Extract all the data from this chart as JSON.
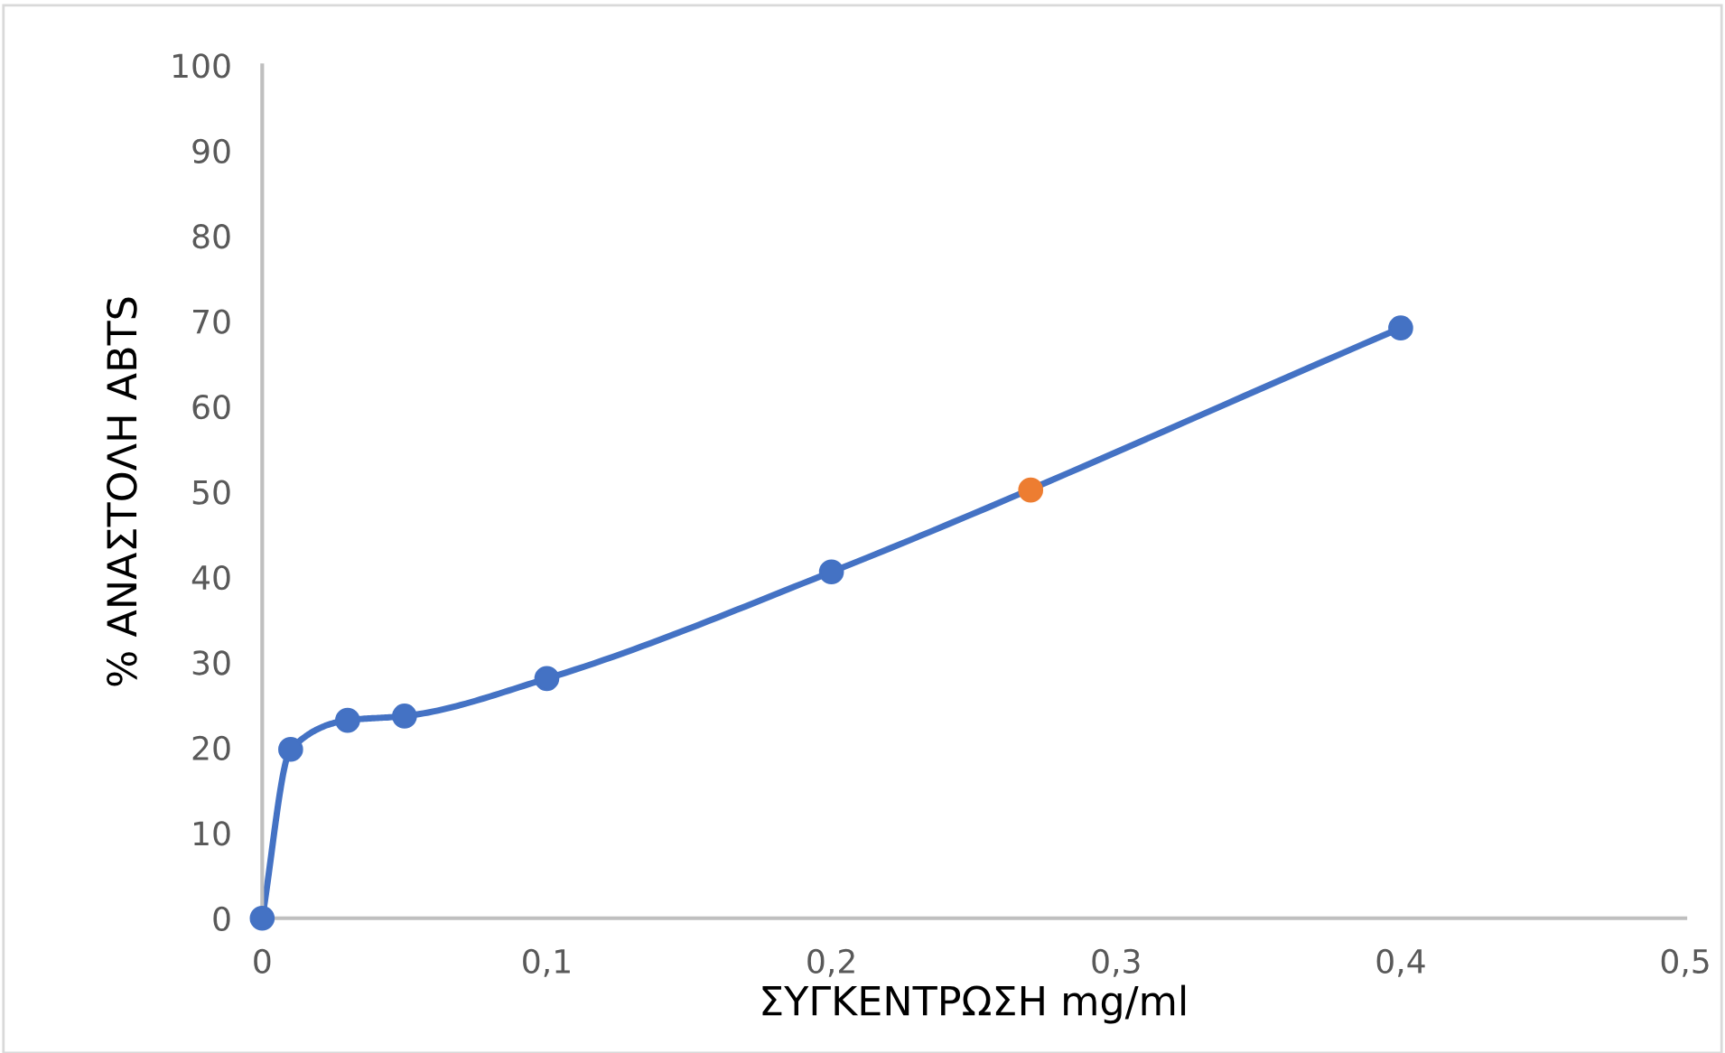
{
  "chart_data": {
    "type": "line",
    "xlabel": "ΣΥΓΚΕΝΤΡΩΣΗ mg/ml",
    "ylabel": "% ΑΝΑΣΤΟΛΗ ABTS",
    "series": [
      {
        "color": "#4472c4",
        "x": [
          0,
          0.01,
          0.03,
          0.05,
          0.1,
          0.2,
          0.4
        ],
        "values": [
          0,
          19.8,
          23.2,
          23.7,
          28.1,
          40.6,
          69.2
        ]
      },
      {
        "type": "scatter",
        "color": "#ed7d31",
        "x": [
          0.27
        ],
        "values": [
          50.2
        ]
      }
    ],
    "marker": "circle",
    "line_style": "solid",
    "xlim": [
      0,
      0.5
    ],
    "xticks": [
      0,
      {
        "value": 0.1,
        "label": "0,1"
      },
      {
        "value": 0.2,
        "label": "0,2"
      },
      {
        "value": 0.3,
        "label": "0,3"
      },
      {
        "value": 0.4,
        "label": "0,4"
      },
      {
        "value": 0.5,
        "label": "0,5"
      }
    ],
    "ylim": [
      0,
      100
    ],
    "yticks": [
      0,
      10,
      20,
      30,
      40,
      50,
      60,
      70,
      80,
      90,
      100
    ],
    "grid": false
  }
}
